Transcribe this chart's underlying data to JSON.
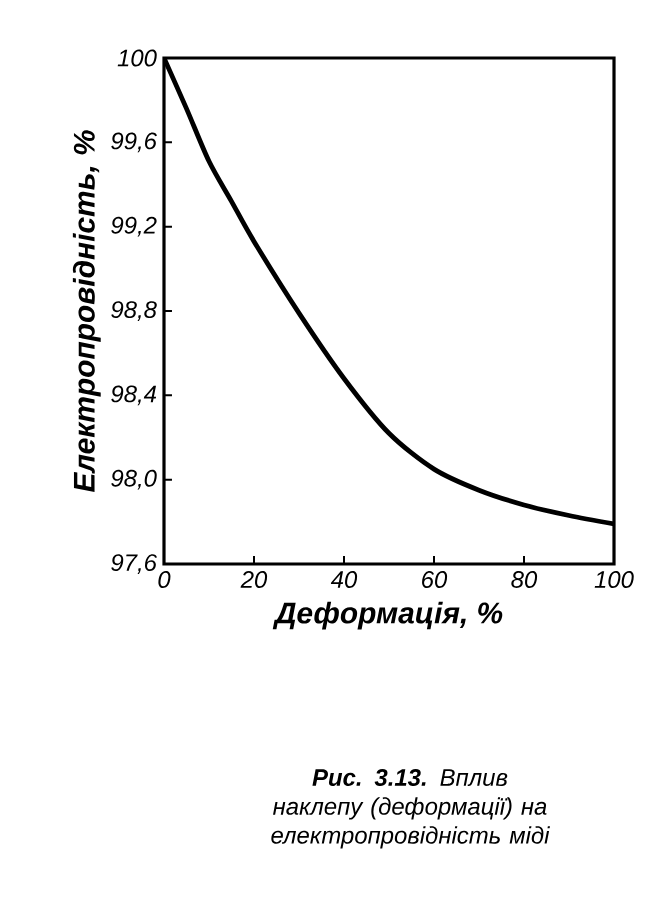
{
  "chart_data": {
    "type": "line",
    "xlabel": "Деформація, %",
    "ylabel": "Електропровідність, %",
    "annotations": [
      "**Рис. 3.13.** Вплив наклепу (деформації) на електропровідність міді"
    ],
    "x": [
      0,
      5,
      10,
      15,
      20,
      30,
      40,
      50,
      60,
      70,
      80,
      90,
      100
    ],
    "series": [
      {
        "color": "#000000",
        "values": [
          100,
          99.76,
          99.51,
          99.32,
          99.13,
          98.79,
          98.48,
          98.22,
          98.05,
          97.95,
          97.88,
          97.83,
          97.79
        ]
      }
    ],
    "xlim": [
      0,
      100
    ],
    "ylim": [
      97.6,
      100
    ],
    "xticks": [
      0,
      20,
      40,
      60,
      80,
      100
    ],
    "yticks": [
      {
        "value": 97.6,
        "label": "97,6"
      },
      {
        "value": 98.0,
        "label": "98,0"
      },
      {
        "value": 98.4,
        "label": "98,4"
      },
      {
        "value": 98.8,
        "label": "98,8"
      },
      {
        "value": 99.2,
        "label": "99,2"
      },
      {
        "value": 99.6,
        "label": "99,6"
      },
      100
    ],
    "marker": "none",
    "line_style": "solid"
  }
}
